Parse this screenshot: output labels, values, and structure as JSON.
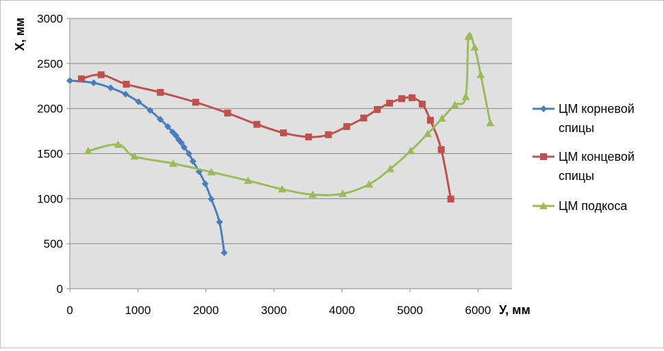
{
  "chart_data": {
    "type": "line",
    "title": "",
    "xlabel": "У, мм",
    "ylabel": "Х, мм",
    "xlim": [
      0,
      6500
    ],
    "ylim": [
      0,
      3000
    ],
    "x_ticks": [
      "0",
      "1000",
      "2000",
      "3000",
      "4000",
      "5000",
      "6000"
    ],
    "y_ticks": [
      "0",
      "500",
      "1000",
      "1500",
      "2000",
      "2500",
      "3000"
    ],
    "grid": "horizontal",
    "plot_background": "#e0e0e0",
    "legend_position": "right",
    "series": [
      {
        "name": "ЦМ корневой спицы",
        "color": "#4a7ebb",
        "marker": "diamond",
        "points": [
          [
            0,
            2310
          ],
          [
            350,
            2285
          ],
          [
            600,
            2230
          ],
          [
            820,
            2160
          ],
          [
            1010,
            2075
          ],
          [
            1180,
            1980
          ],
          [
            1330,
            1880
          ],
          [
            1440,
            1800
          ],
          [
            1510,
            1740
          ],
          [
            1560,
            1700
          ],
          [
            1600,
            1655
          ],
          [
            1640,
            1620
          ],
          [
            1680,
            1570
          ],
          [
            1750,
            1500
          ],
          [
            1810,
            1415
          ],
          [
            1900,
            1300
          ],
          [
            1990,
            1165
          ],
          [
            2080,
            995
          ],
          [
            2200,
            740
          ],
          [
            2270,
            400
          ]
        ]
      },
      {
        "name": "ЦМ концевой спицы",
        "color": "#c0504d",
        "marker": "square",
        "points": [
          [
            170,
            2330
          ],
          [
            460,
            2375
          ],
          [
            830,
            2270
          ],
          [
            1330,
            2180
          ],
          [
            1850,
            2070
          ],
          [
            2320,
            1950
          ],
          [
            2750,
            1825
          ],
          [
            3140,
            1730
          ],
          [
            3510,
            1685
          ],
          [
            3800,
            1710
          ],
          [
            4070,
            1800
          ],
          [
            4320,
            1895
          ],
          [
            4520,
            1990
          ],
          [
            4700,
            2060
          ],
          [
            4880,
            2110
          ],
          [
            5030,
            2120
          ],
          [
            5180,
            2050
          ],
          [
            5300,
            1870
          ],
          [
            5460,
            1545
          ],
          [
            5600,
            995
          ]
        ]
      },
      {
        "name": "ЦМ подкоса",
        "color": "#9bbb59",
        "marker": "triangle",
        "points": [
          [
            270,
            1530
          ],
          [
            710,
            1600
          ],
          [
            950,
            1470
          ],
          [
            1520,
            1390
          ],
          [
            2080,
            1295
          ],
          [
            2620,
            1200
          ],
          [
            3120,
            1105
          ],
          [
            3570,
            1045
          ],
          [
            4010,
            1055
          ],
          [
            4400,
            1160
          ],
          [
            4710,
            1330
          ],
          [
            5010,
            1530
          ],
          [
            5260,
            1720
          ],
          [
            5470,
            1890
          ],
          [
            5660,
            2040
          ],
          [
            5820,
            2130
          ],
          [
            5860,
            2800
          ],
          [
            5950,
            2680
          ],
          [
            6040,
            2375
          ],
          [
            6180,
            1840
          ]
        ]
      }
    ]
  }
}
